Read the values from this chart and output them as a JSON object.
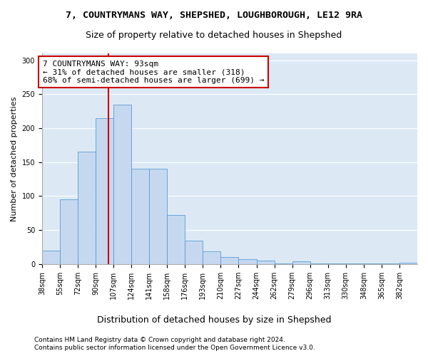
{
  "title1": "7, COUNTRYMANS WAY, SHEPSHED, LOUGHBOROUGH, LE12 9RA",
  "title2": "Size of property relative to detached houses in Shepshed",
  "xlabel": "Distribution of detached houses by size in Shepshed",
  "ylabel": "Number of detached properties",
  "footer1": "Contains HM Land Registry data © Crown copyright and database right 2024.",
  "footer2": "Contains public sector information licensed under the Open Government Licence v3.0.",
  "annotation_line1": "7 COUNTRYMANS WAY: 93sqm",
  "annotation_line2": "← 31% of detached houses are smaller (318)",
  "annotation_line3": "68% of semi-detached houses are larger (699) →",
  "bar_color": "#c5d8f0",
  "bar_edge_color": "#5b9bd5",
  "vline_color": "#cc0000",
  "annotation_box_color": "#ffffff",
  "annotation_box_edge": "#cc0000",
  "background_color": "#dce9f5",
  "fig_background": "#ffffff",
  "grid_color": "#ffffff",
  "bin_labels": [
    "38sqm",
    "55sqm",
    "72sqm",
    "90sqm",
    "107sqm",
    "124sqm",
    "141sqm",
    "158sqm",
    "176sqm",
    "193sqm",
    "210sqm",
    "227sqm",
    "244sqm",
    "262sqm",
    "279sqm",
    "296sqm",
    "313sqm",
    "330sqm",
    "348sqm",
    "365sqm",
    "382sqm"
  ],
  "bin_edges": [
    29.5,
    46.5,
    63.5,
    80.5,
    97.5,
    114.5,
    131.5,
    148.5,
    165.5,
    182.5,
    199.5,
    216.5,
    233.5,
    250.5,
    267.5,
    284.5,
    301.5,
    318.5,
    335.5,
    352.5,
    369.5,
    386.5
  ],
  "bar_heights": [
    20,
    95,
    165,
    215,
    235,
    140,
    140,
    72,
    34,
    19,
    10,
    7,
    5,
    1,
    4,
    1,
    1,
    1,
    1,
    1,
    2
  ],
  "vline_x": 93,
  "ylim": [
    0,
    310
  ],
  "yticks": [
    0,
    50,
    100,
    150,
    200,
    250,
    300
  ],
  "title1_fontsize": 9.5,
  "title2_fontsize": 9,
  "annot_fontsize": 8,
  "ylabel_fontsize": 8,
  "xlabel_fontsize": 9,
  "footer_fontsize": 6.5,
  "tick_fontsize": 7
}
